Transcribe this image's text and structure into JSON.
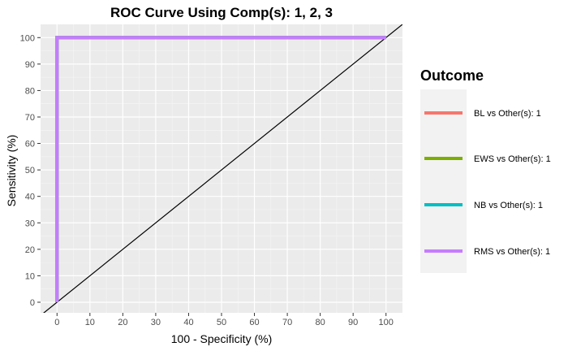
{
  "chart_data": {
    "type": "line",
    "title": "ROC Curve Using Comp(s): 1, 2, 3",
    "xlabel": "100 - Specificity (%)",
    "ylabel": "Sensitivity (%)",
    "xlim": [
      -5,
      105
    ],
    "ylim": [
      -4,
      105
    ],
    "x_ticks": [
      0,
      10,
      20,
      30,
      40,
      50,
      60,
      70,
      80,
      90,
      100
    ],
    "y_ticks": [
      0,
      10,
      20,
      30,
      40,
      50,
      60,
      70,
      80,
      90,
      100
    ],
    "grid": true,
    "legend": {
      "title": "Outcome",
      "position": "right"
    },
    "reference_line": {
      "type": "diagonal",
      "color": "#000000",
      "points": [
        [
          0,
          0
        ],
        [
          100,
          100
        ]
      ]
    },
    "series": [
      {
        "name": "BL vs Other(s): 1",
        "color": "#F8766D",
        "x": [
          0,
          0,
          100
        ],
        "y": [
          0,
          100,
          100
        ]
      },
      {
        "name": "EWS vs Other(s): 1",
        "color": "#7CAE00",
        "x": [
          0,
          0,
          100
        ],
        "y": [
          0,
          100,
          100
        ]
      },
      {
        "name": "NB vs Other(s): 1",
        "color": "#00BFC4",
        "x": [
          0,
          0,
          100
        ],
        "y": [
          0,
          100,
          100
        ]
      },
      {
        "name": "RMS vs Other(s): 1",
        "color": "#C77CFF",
        "x": [
          0,
          0,
          100
        ],
        "y": [
          0,
          100,
          100
        ]
      }
    ]
  }
}
